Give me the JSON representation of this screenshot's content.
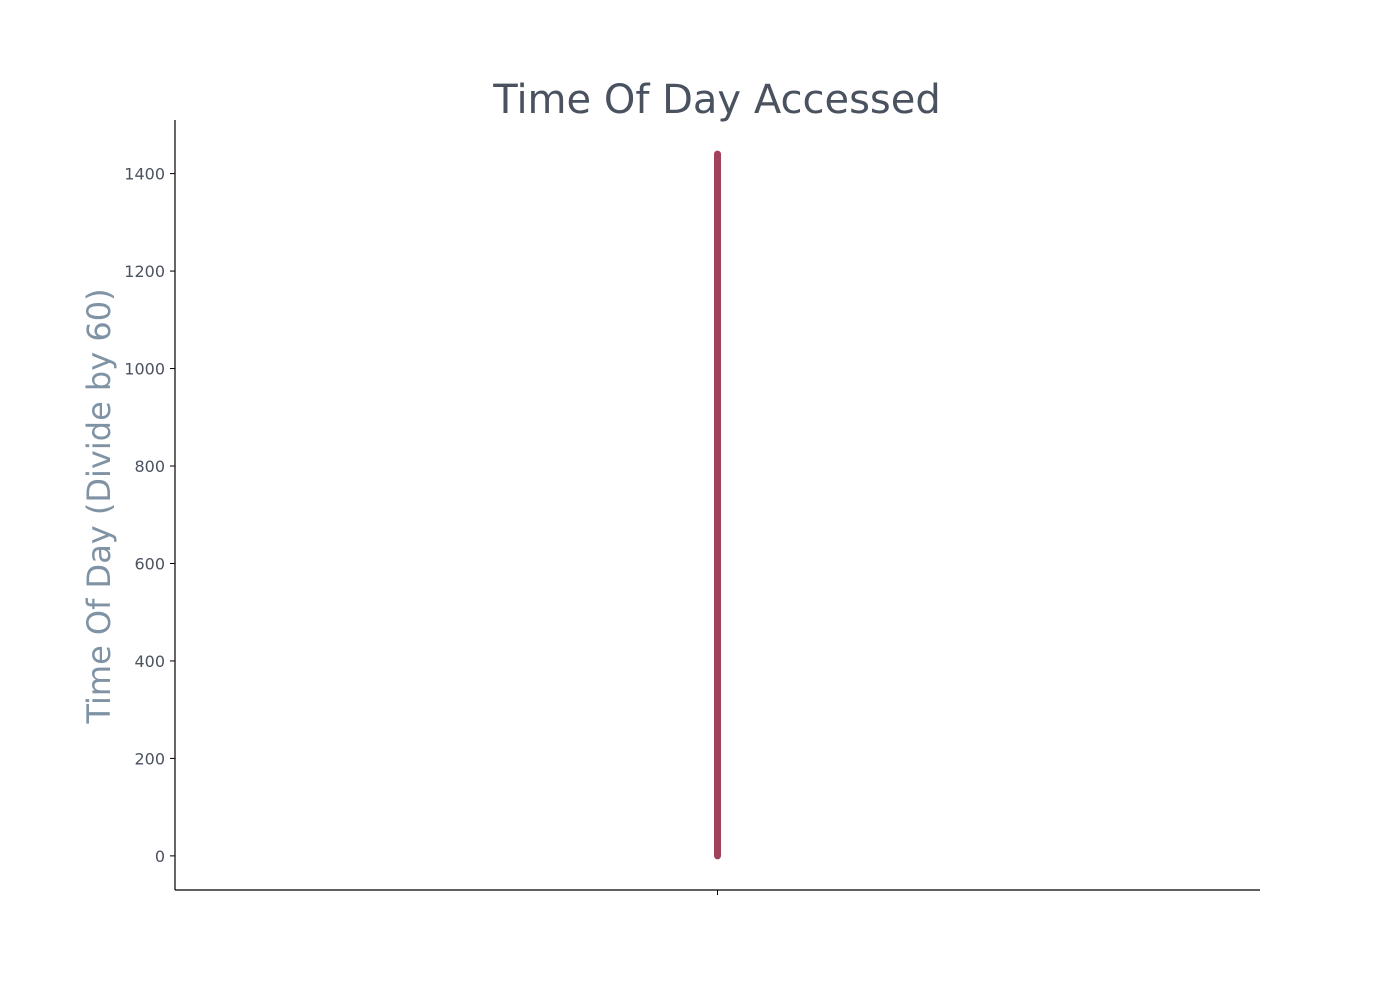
{
  "chart_data": {
    "type": "scatter",
    "title": "Time Of Day Accessed",
    "xlabel": "",
    "ylabel": "Time Of Day (Divide by 60)",
    "x_ticks": [
      ""
    ],
    "y_ticks": [
      0,
      200,
      400,
      600,
      800,
      1000,
      1200,
      1400
    ],
    "ylim": [
      -70,
      1510
    ],
    "xlim": [
      -1,
      1
    ],
    "grid": false,
    "series": [
      {
        "color": "#a0435a",
        "x": 0,
        "y_range": [
          0,
          1440
        ]
      }
    ]
  }
}
